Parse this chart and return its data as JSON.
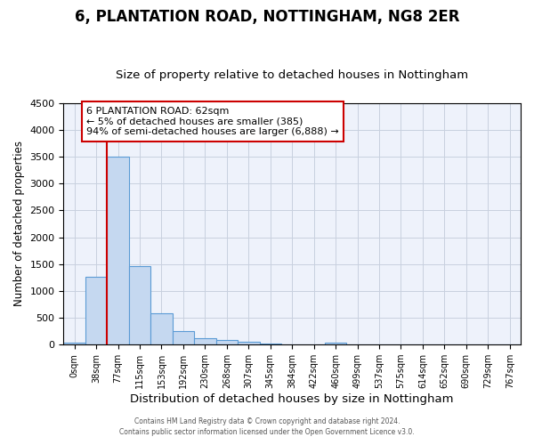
{
  "title": "6, PLANTATION ROAD, NOTTINGHAM, NG8 2ER",
  "subtitle": "Size of property relative to detached houses in Nottingham",
  "xlabel": "Distribution of detached houses by size in Nottingham",
  "ylabel": "Number of detached properties",
  "annotation_line1": "6 PLANTATION ROAD: 62sqm",
  "annotation_line2": "← 5% of detached houses are smaller (385)",
  "annotation_line3": "94% of semi-detached houses are larger (6,888) →",
  "footnote1": "Contains HM Land Registry data © Crown copyright and database right 2024.",
  "footnote2": "Contains public sector information licensed under the Open Government Licence v3.0.",
  "categories": [
    "0sqm",
    "38sqm",
    "77sqm",
    "115sqm",
    "153sqm",
    "192sqm",
    "230sqm",
    "268sqm",
    "307sqm",
    "345sqm",
    "384sqm",
    "422sqm",
    "460sqm",
    "499sqm",
    "537sqm",
    "575sqm",
    "614sqm",
    "652sqm",
    "690sqm",
    "729sqm",
    "767sqm"
  ],
  "bar_heights": [
    30,
    1270,
    3500,
    1470,
    580,
    245,
    125,
    85,
    55,
    25,
    10,
    5,
    30,
    5,
    0,
    0,
    0,
    0,
    0,
    0,
    0
  ],
  "bar_color": "#c5d8f0",
  "bar_edge_color": "#5b9bd5",
  "ylim": [
    0,
    4500
  ],
  "yticks": [
    0,
    500,
    1000,
    1500,
    2000,
    2500,
    3000,
    3500,
    4000,
    4500
  ],
  "annotation_box_color": "#ffffff",
  "annotation_box_edge": "#cc0000",
  "red_line_color": "#cc0000",
  "grid_color": "#c8d0df",
  "bg_color": "#eef2fb",
  "title_fontsize": 12,
  "subtitle_fontsize": 9.5,
  "ylabel_fontsize": 8.5,
  "xlabel_fontsize": 9.5
}
